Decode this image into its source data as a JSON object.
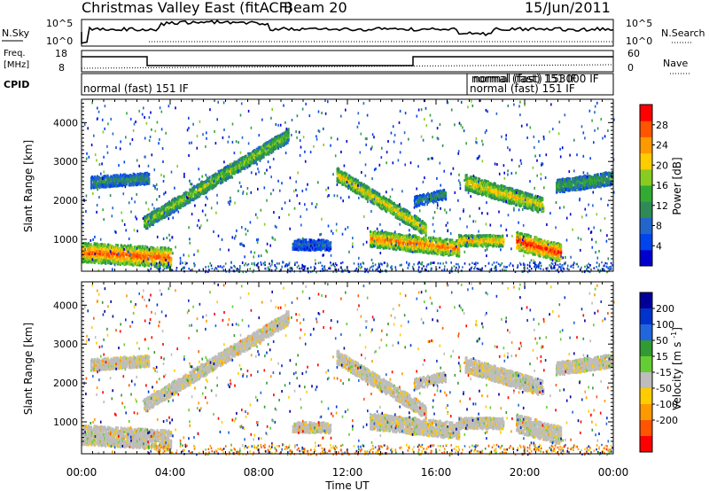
{
  "header": {
    "title": "Christmas Valley East (fitACF)",
    "beam": "Beam 20",
    "date": "15/Jun/2011"
  },
  "status": {
    "nsky_label": "N.Sky",
    "nsearch_label": "N.Search",
    "nsky_ticks": [
      "10^5",
      "10^0"
    ],
    "nsearch_ticks": [
      "10^5",
      "10^0"
    ],
    "freq_label": "Freq.",
    "freq_unit": "[MHz]",
    "freq_ticks": [
      "18",
      "8"
    ],
    "nave_label": "Nave",
    "nave_ticks": [
      "60",
      "0"
    ],
    "cpid_label": "CPID",
    "cpid_segments": [
      {
        "start_h": 0.0,
        "text": "normal (fast) 151 IF"
      },
      {
        "start_h": 17.2,
        "text": "normal (fast) 151 IF"
      },
      {
        "start_h": 17.2,
        "text": "normal (fast) 151 IF"
      },
      {
        "start_h": 17.2,
        "text": "normal (fast) 153000 IF"
      }
    ]
  },
  "chart_data": [
    {
      "type": "heatmap",
      "quantity": "power",
      "ylabel": "Slant Range [km]",
      "xlabel": "Time UT",
      "xticks": [
        "00:00",
        "04:00",
        "08:00",
        "12:00",
        "16:00",
        "20:00",
        "00:00"
      ],
      "yticks": [
        1000,
        2000,
        3000,
        4000
      ],
      "ylim": [
        180,
        4600
      ],
      "xlim_hours": [
        0,
        24
      ],
      "colorbar": {
        "label": "Power [dB]",
        "ticks": [
          4,
          8,
          12,
          16,
          20,
          24,
          28
        ],
        "range": [
          0,
          32
        ],
        "colors": [
          "#0000cc",
          "#0044ee",
          "#2266cc",
          "#2e8b57",
          "#33aa33",
          "#88cc22",
          "#ffcc00",
          "#ff9900",
          "#ff5500",
          "#ff0000"
        ]
      },
      "bands": [
        {
          "t0": 0.0,
          "t1": 4.0,
          "r0": 700,
          "r1": 560,
          "h": 380,
          "p": 28
        },
        {
          "t0": 0.4,
          "t1": 3.0,
          "r0": 2500,
          "r1": 2600,
          "h": 220,
          "p": 12
        },
        {
          "t0": 2.8,
          "t1": 9.3,
          "r0": 1450,
          "r1": 3700,
          "h": 260,
          "p": 18
        },
        {
          "t0": 9.5,
          "t1": 11.2,
          "r0": 900,
          "r1": 880,
          "h": 200,
          "p": 8
        },
        {
          "t0": 11.5,
          "t1": 15.5,
          "r0": 2700,
          "r1": 1300,
          "h": 260,
          "p": 22
        },
        {
          "t0": 13.0,
          "t1": 17.0,
          "r0": 1050,
          "r1": 800,
          "h": 320,
          "p": 26
        },
        {
          "t0": 15.0,
          "t1": 16.4,
          "r0": 2000,
          "r1": 2200,
          "h": 200,
          "p": 12
        },
        {
          "t0": 17.0,
          "t1": 19.0,
          "r0": 1000,
          "r1": 1000,
          "h": 220,
          "p": 24
        },
        {
          "t0": 17.3,
          "t1": 20.8,
          "r0": 2500,
          "r1": 1900,
          "h": 300,
          "p": 22
        },
        {
          "t0": 19.6,
          "t1": 21.6,
          "r0": 1000,
          "r1": 680,
          "h": 350,
          "p": 30
        },
        {
          "t0": 21.4,
          "t1": 23.9,
          "r0": 2400,
          "r1": 2600,
          "h": 260,
          "p": 14
        }
      ]
    },
    {
      "type": "heatmap",
      "quantity": "velocity",
      "ylabel": "Slant Range [km]",
      "xlabel": "Time UT",
      "xticks": [
        "00:00",
        "04:00",
        "08:00",
        "12:00",
        "16:00",
        "20:00",
        "00:00"
      ],
      "yticks": [
        1000,
        2000,
        3000,
        4000
      ],
      "ylim": [
        180,
        4600
      ],
      "xlim_hours": [
        0,
        24
      ],
      "colorbar": {
        "label": "Velocity [m s^-1]",
        "ticks": [
          200,
          100,
          50,
          15,
          -15,
          -50,
          -100,
          -200
        ],
        "colors": [
          "#000099",
          "#0033cc",
          "#2266dd",
          "#339933",
          "#66cc33",
          "#bdbdbd",
          "#ffcc00",
          "#ff9900",
          "#ff5500",
          "#ff0000"
        ]
      }
    }
  ]
}
